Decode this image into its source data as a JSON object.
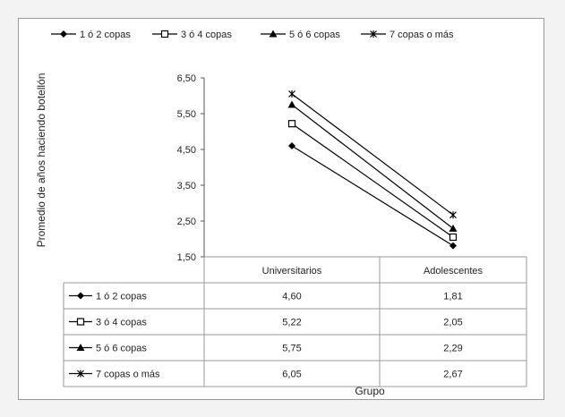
{
  "chart_data": {
    "type": "line",
    "title": "",
    "xlabel": "Grupo",
    "ylabel": "Promedio de años haciendo botellón",
    "categories": [
      "Universitarios",
      "Adolescentes"
    ],
    "yticks": [
      "1,50",
      "2,50",
      "3,50",
      "4,50",
      "5,50",
      "6,50"
    ],
    "ylim": [
      1.5,
      6.5
    ],
    "legend_position": "top",
    "grid": false,
    "series": [
      {
        "name": "1 ó 2 copas",
        "marker": "diamond",
        "values": [
          4.6,
          1.81
        ],
        "labels": [
          "4,60",
          "1,81"
        ]
      },
      {
        "name": "3 ó 4 copas",
        "marker": "square-open",
        "values": [
          5.22,
          2.05
        ],
        "labels": [
          "5,22",
          "2,05"
        ]
      },
      {
        "name": "5 ó 6 copas",
        "marker": "triangle",
        "values": [
          5.75,
          2.29
        ],
        "labels": [
          "5,75",
          "2,29"
        ]
      },
      {
        "name": "7 copas o más",
        "marker": "x-star",
        "values": [
          6.05,
          2.67
        ],
        "labels": [
          "6,05",
          "2,67"
        ]
      }
    ],
    "colors": {
      "line": "#000000",
      "axis": "#555555",
      "table_border": "#9a9a9a"
    }
  }
}
